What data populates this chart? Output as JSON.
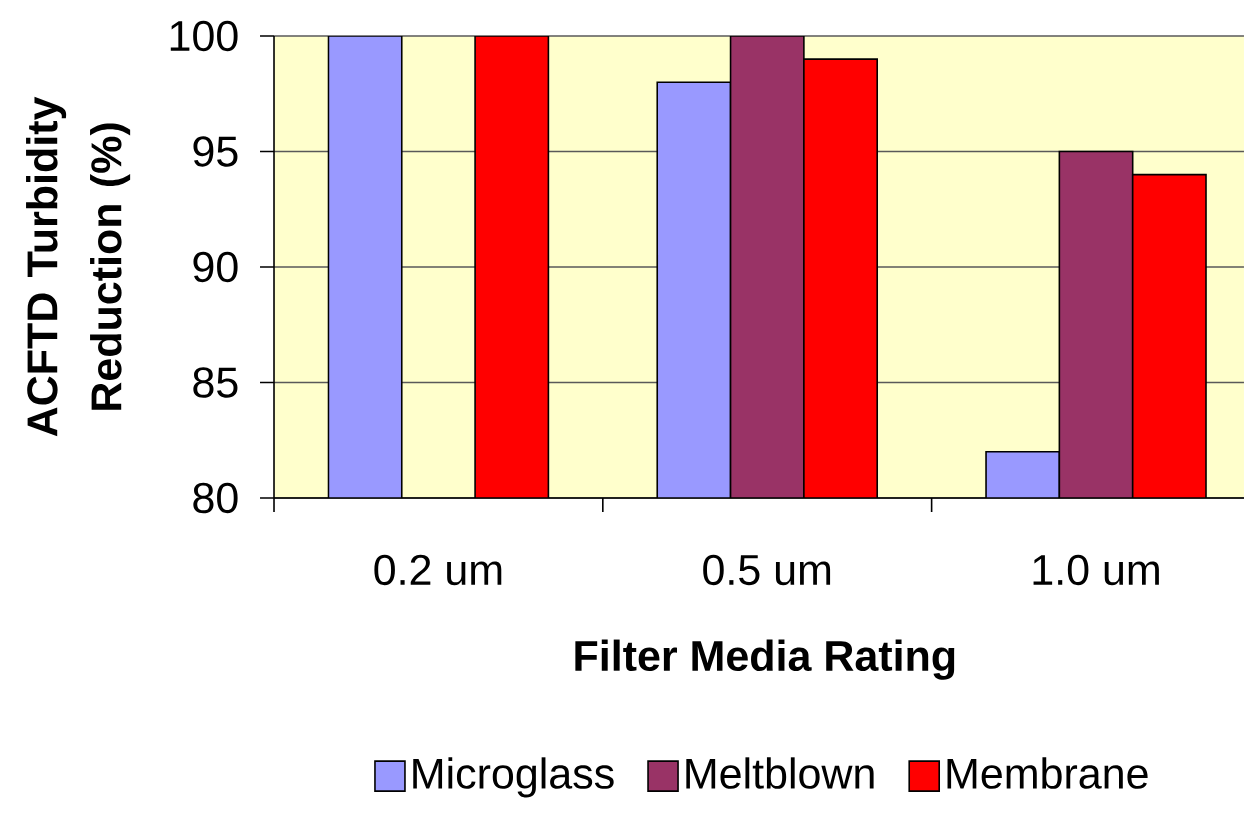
{
  "chart_data": {
    "type": "bar",
    "xlabel": "Filter Media Rating",
    "ylabel": "ACFTD Turbidity Reduction (%)",
    "categories": [
      "0.2 um",
      "0.5 um",
      "1.0 um"
    ],
    "series": [
      {
        "name": "Microglass",
        "color": "#9999ff",
        "values": [
          100,
          98,
          82
        ]
      },
      {
        "name": "Meltblown",
        "color": "#993366",
        "values": [
          null,
          100,
          95
        ]
      },
      {
        "name": "Membrane",
        "color": "#ff0000",
        "values": [
          100,
          99,
          94
        ]
      }
    ],
    "ylim": [
      80,
      100
    ],
    "yticks": [
      80,
      85,
      90,
      95,
      100
    ],
    "grid": "y",
    "legend": "bottom"
  }
}
